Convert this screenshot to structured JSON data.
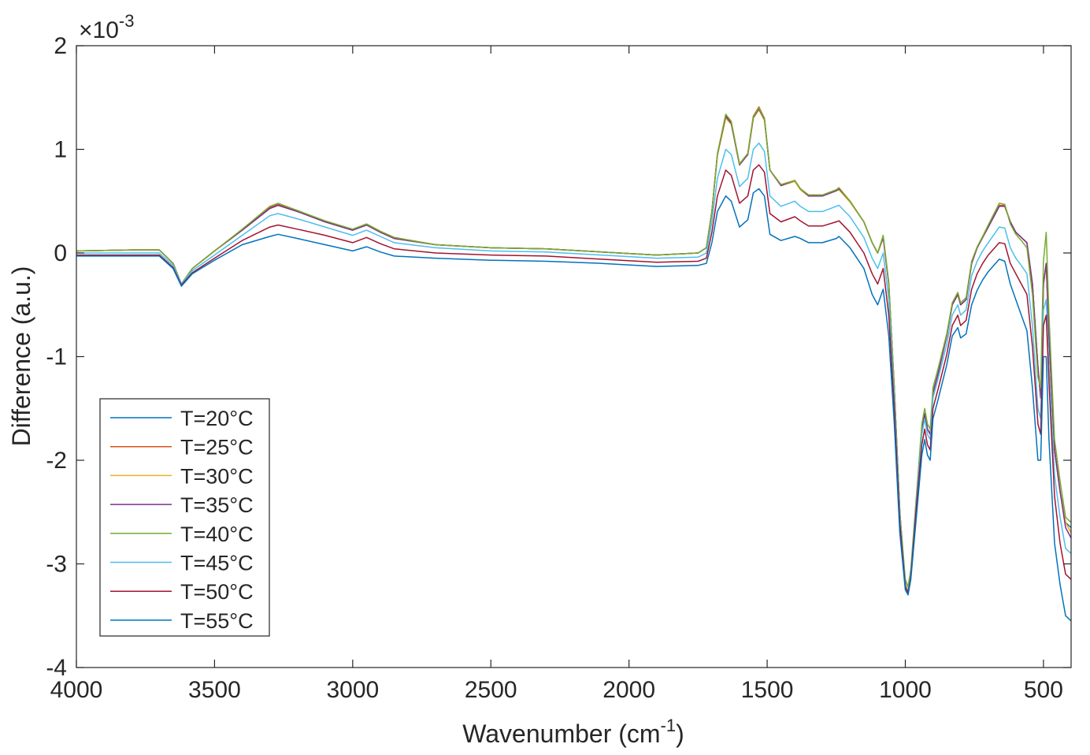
{
  "chart_data": {
    "type": "line",
    "title": "",
    "xlabel": "Wavenumber (cm",
    "xlabel_sup": "-1",
    "xlabel_suffix": ")",
    "ylabel": "Difference (a.u.)",
    "y_multiplier": "×10",
    "y_multiplier_exp": "-3",
    "x_reversed": true,
    "xlim": [
      4000,
      400
    ],
    "ylim": [
      -4,
      2
    ],
    "x_ticks": [
      4000,
      3500,
      3000,
      2500,
      2000,
      1500,
      1000,
      500
    ],
    "x_tick_labels": [
      "4000",
      "3500",
      "3000",
      "2500",
      "2000",
      "1500",
      "1000",
      "500"
    ],
    "y_ticks": [
      2,
      1,
      0,
      -1,
      -2,
      -3,
      -4
    ],
    "y_tick_labels": [
      "2",
      "1",
      "0",
      "-1",
      "-2",
      "-3",
      "-4"
    ],
    "grid": false,
    "legend_position": "bottom-left",
    "x": [
      4000,
      3800,
      3700,
      3650,
      3620,
      3580,
      3500,
      3400,
      3300,
      3270,
      3200,
      3100,
      3000,
      2950,
      2900,
      2850,
      2700,
      2500,
      2300,
      2100,
      1900,
      1750,
      1720,
      1700,
      1680,
      1650,
      1630,
      1600,
      1570,
      1550,
      1530,
      1510,
      1490,
      1450,
      1400,
      1380,
      1350,
      1300,
      1250,
      1240,
      1200,
      1150,
      1120,
      1100,
      1080,
      1060,
      1040,
      1020,
      1000,
      990,
      980,
      960,
      940,
      930,
      920,
      910,
      900,
      880,
      850,
      830,
      810,
      800,
      780,
      760,
      740,
      720,
      700,
      660,
      640,
      620,
      600,
      580,
      560,
      540,
      520,
      510,
      500,
      490,
      480,
      460,
      440,
      420,
      400
    ],
    "series": [
      {
        "name": "T=20°C",
        "color": "#0072BD",
        "scale": 1.0,
        "values": [
          0.02,
          0.03,
          0.03,
          -0.1,
          -0.3,
          -0.15,
          0.02,
          0.22,
          0.43,
          0.46,
          0.4,
          0.3,
          0.22,
          0.27,
          0.2,
          0.14,
          0.08,
          0.05,
          0.04,
          0.01,
          -0.02,
          0.0,
          0.05,
          0.4,
          0.95,
          1.32,
          1.25,
          0.85,
          0.95,
          1.3,
          1.4,
          1.3,
          0.8,
          0.65,
          0.7,
          0.62,
          0.55,
          0.55,
          0.6,
          0.62,
          0.5,
          0.3,
          0.1,
          0.0,
          0.15,
          -0.3,
          -1.3,
          -2.5,
          -3.2,
          -3.28,
          -3.1,
          -2.4,
          -1.7,
          -1.55,
          -1.7,
          -1.75,
          -1.35,
          -1.15,
          -0.8,
          -0.5,
          -0.4,
          -0.5,
          -0.45,
          -0.1,
          0.05,
          0.15,
          0.25,
          0.45,
          0.45,
          0.3,
          0.2,
          0.15,
          0.1,
          -0.3,
          -1.1,
          -1.4,
          -0.3,
          -0.1,
          -0.8,
          -1.9,
          -2.3,
          -2.6,
          -2.65
        ]
      },
      {
        "name": "T=25°C",
        "color": "#D95319",
        "scale": 1.0,
        "values": [
          0.02,
          0.03,
          0.03,
          -0.1,
          -0.3,
          -0.15,
          0.02,
          0.22,
          0.44,
          0.47,
          0.41,
          0.3,
          0.23,
          0.28,
          0.21,
          0.15,
          0.08,
          0.05,
          0.04,
          0.01,
          -0.02,
          0.0,
          0.05,
          0.4,
          0.95,
          1.33,
          1.26,
          0.86,
          0.96,
          1.32,
          1.41,
          1.3,
          0.8,
          0.66,
          0.7,
          0.62,
          0.56,
          0.56,
          0.61,
          0.63,
          0.5,
          0.3,
          0.1,
          0.0,
          0.15,
          -0.3,
          -1.3,
          -2.5,
          -3.2,
          -3.28,
          -3.1,
          -2.4,
          -1.7,
          -1.55,
          -1.7,
          -1.75,
          -1.35,
          -1.15,
          -0.8,
          -0.5,
          -0.4,
          -0.5,
          -0.45,
          -0.1,
          0.05,
          0.15,
          0.25,
          0.46,
          0.46,
          0.3,
          0.2,
          0.15,
          0.1,
          -0.3,
          -1.1,
          -1.4,
          -0.3,
          -0.1,
          -0.8,
          -1.9,
          -2.3,
          -2.6,
          -2.7
        ]
      },
      {
        "name": "T=30°C",
        "color": "#EDB120",
        "scale": 1.0,
        "values": [
          0.02,
          0.03,
          0.03,
          -0.1,
          -0.3,
          -0.15,
          0.02,
          0.22,
          0.43,
          0.46,
          0.4,
          0.3,
          0.22,
          0.27,
          0.2,
          0.14,
          0.08,
          0.05,
          0.04,
          0.01,
          -0.02,
          0.0,
          0.05,
          0.4,
          0.94,
          1.3,
          1.24,
          0.85,
          0.95,
          1.3,
          1.38,
          1.28,
          0.8,
          0.65,
          0.69,
          0.61,
          0.55,
          0.55,
          0.6,
          0.61,
          0.49,
          0.3,
          0.1,
          0.0,
          0.15,
          -0.3,
          -1.3,
          -2.5,
          -3.18,
          -3.26,
          -3.08,
          -2.4,
          -1.7,
          -1.55,
          -1.7,
          -1.75,
          -1.35,
          -1.15,
          -0.8,
          -0.5,
          -0.4,
          -0.5,
          -0.45,
          -0.1,
          0.05,
          0.15,
          0.25,
          0.45,
          0.45,
          0.3,
          0.2,
          0.15,
          0.1,
          -0.3,
          -1.1,
          -1.4,
          -0.3,
          -0.1,
          -0.8,
          -1.9,
          -2.3,
          -2.6,
          -2.7
        ]
      },
      {
        "name": "T=35°C",
        "color": "#7E2F8E",
        "scale": 1.0,
        "values": [
          0.02,
          0.03,
          0.03,
          -0.1,
          -0.3,
          -0.15,
          0.02,
          0.22,
          0.43,
          0.46,
          0.4,
          0.3,
          0.22,
          0.27,
          0.2,
          0.14,
          0.08,
          0.05,
          0.04,
          0.01,
          -0.02,
          0.0,
          0.05,
          0.4,
          0.95,
          1.32,
          1.25,
          0.85,
          0.95,
          1.31,
          1.39,
          1.29,
          0.8,
          0.65,
          0.7,
          0.62,
          0.55,
          0.55,
          0.6,
          0.62,
          0.5,
          0.3,
          0.1,
          0.0,
          0.15,
          -0.3,
          -1.3,
          -2.5,
          -3.2,
          -3.28,
          -3.1,
          -2.4,
          -1.7,
          -1.55,
          -1.7,
          -1.75,
          -1.35,
          -1.15,
          -0.8,
          -0.5,
          -0.4,
          -0.5,
          -0.45,
          -0.1,
          0.05,
          0.15,
          0.25,
          0.45,
          0.45,
          0.3,
          0.2,
          0.15,
          0.1,
          -0.3,
          -1.1,
          -1.4,
          -0.3,
          -0.1,
          -0.8,
          -1.9,
          -2.3,
          -2.65,
          -2.75
        ]
      },
      {
        "name": "T=40°C",
        "color": "#77AC30",
        "scale": 1.0,
        "values": [
          0.02,
          0.03,
          0.03,
          -0.1,
          -0.3,
          -0.15,
          0.02,
          0.23,
          0.45,
          0.48,
          0.41,
          0.31,
          0.23,
          0.28,
          0.21,
          0.15,
          0.08,
          0.05,
          0.04,
          0.01,
          -0.02,
          0.0,
          0.05,
          0.4,
          0.96,
          1.34,
          1.27,
          0.86,
          0.96,
          1.32,
          1.4,
          1.3,
          0.8,
          0.66,
          0.7,
          0.62,
          0.56,
          0.56,
          0.61,
          0.63,
          0.5,
          0.3,
          0.1,
          0.0,
          0.17,
          -0.28,
          -1.3,
          -2.5,
          -3.15,
          -3.22,
          -3.05,
          -2.35,
          -1.65,
          -1.5,
          -1.65,
          -1.7,
          -1.3,
          -1.1,
          -0.78,
          -0.48,
          -0.38,
          -0.48,
          -0.43,
          -0.08,
          0.06,
          0.16,
          0.27,
          0.48,
          0.47,
          0.28,
          0.18,
          0.12,
          0.05,
          -0.4,
          -1.2,
          -1.3,
          -0.08,
          0.2,
          -0.6,
          -1.8,
          -2.2,
          -2.55,
          -2.6
        ]
      },
      {
        "name": "T=45°C",
        "color": "#4DBEEE",
        "scale": 1.0,
        "values": [
          0.0,
          0.0,
          0.0,
          -0.12,
          -0.3,
          -0.17,
          -0.02,
          0.17,
          0.36,
          0.38,
          0.33,
          0.25,
          0.17,
          0.22,
          0.16,
          0.1,
          0.05,
          0.02,
          0.01,
          -0.02,
          -0.05,
          -0.04,
          0.0,
          0.3,
          0.72,
          1.0,
          0.95,
          0.64,
          0.72,
          1.0,
          1.06,
          0.98,
          0.55,
          0.45,
          0.5,
          0.45,
          0.4,
          0.4,
          0.45,
          0.46,
          0.35,
          0.15,
          -0.05,
          -0.15,
          0.0,
          -0.45,
          -1.4,
          -2.55,
          -3.2,
          -3.27,
          -3.1,
          -2.4,
          -1.75,
          -1.6,
          -1.75,
          -1.8,
          -1.4,
          -1.2,
          -0.88,
          -0.6,
          -0.5,
          -0.6,
          -0.55,
          -0.22,
          -0.08,
          0.02,
          0.1,
          0.25,
          0.24,
          0.05,
          -0.05,
          -0.12,
          -0.2,
          -0.7,
          -1.5,
          -1.6,
          -0.55,
          -0.45,
          -1.1,
          -2.15,
          -2.55,
          -2.85,
          -2.9
        ]
      },
      {
        "name": "T=50°C",
        "color": "#A2142F",
        "scale": 1.0,
        "values": [
          -0.02,
          -0.02,
          -0.02,
          -0.14,
          -0.31,
          -0.19,
          -0.05,
          0.12,
          0.25,
          0.27,
          0.23,
          0.17,
          0.1,
          0.15,
          0.09,
          0.04,
          0.0,
          -0.02,
          -0.03,
          -0.06,
          -0.09,
          -0.08,
          -0.05,
          0.2,
          0.55,
          0.8,
          0.75,
          0.48,
          0.55,
          0.8,
          0.85,
          0.78,
          0.38,
          0.3,
          0.35,
          0.31,
          0.26,
          0.26,
          0.3,
          0.31,
          0.2,
          0.0,
          -0.2,
          -0.3,
          -0.15,
          -0.6,
          -1.5,
          -2.6,
          -3.22,
          -3.28,
          -3.12,
          -2.45,
          -1.85,
          -1.7,
          -1.85,
          -1.9,
          -1.5,
          -1.3,
          -0.98,
          -0.7,
          -0.6,
          -0.7,
          -0.65,
          -0.35,
          -0.2,
          -0.1,
          -0.02,
          0.1,
          0.09,
          -0.1,
          -0.2,
          -0.3,
          -0.4,
          -0.9,
          -1.65,
          -1.75,
          -0.7,
          -0.6,
          -1.25,
          -2.35,
          -2.8,
          -3.1,
          -3.15
        ]
      },
      {
        "name": "T=55°C",
        "color": "#0072BD",
        "scale": 1.0,
        "values": [
          -0.03,
          -0.03,
          -0.03,
          -0.15,
          -0.32,
          -0.2,
          -0.07,
          0.08,
          0.16,
          0.18,
          0.14,
          0.08,
          0.02,
          0.06,
          0.01,
          -0.03,
          -0.05,
          -0.07,
          -0.08,
          -0.1,
          -0.13,
          -0.12,
          -0.1,
          0.1,
          0.4,
          0.55,
          0.5,
          0.25,
          0.32,
          0.58,
          0.62,
          0.55,
          0.18,
          0.12,
          0.16,
          0.14,
          0.1,
          0.1,
          0.14,
          0.16,
          0.05,
          -0.15,
          -0.4,
          -0.5,
          -0.35,
          -0.8,
          -1.65,
          -2.7,
          -3.25,
          -3.3,
          -3.15,
          -2.55,
          -1.95,
          -1.8,
          -1.95,
          -2.0,
          -1.6,
          -1.4,
          -1.08,
          -0.8,
          -0.72,
          -0.82,
          -0.78,
          -0.5,
          -0.36,
          -0.26,
          -0.18,
          -0.06,
          -0.08,
          -0.3,
          -0.45,
          -0.6,
          -0.75,
          -1.3,
          -2.0,
          -2.0,
          -1.0,
          -1.0,
          -1.8,
          -2.8,
          -3.2,
          -3.5,
          -3.55
        ]
      }
    ]
  }
}
